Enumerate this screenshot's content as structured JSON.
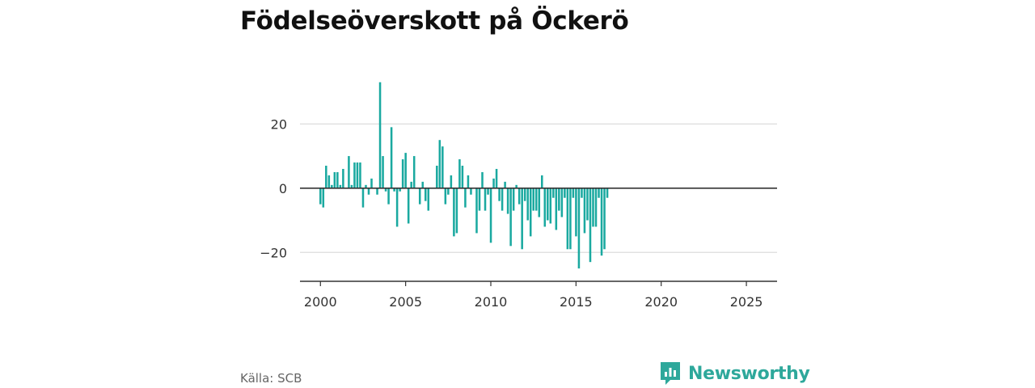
{
  "title": "Födelseöverskott på Öckerö",
  "source": "Källa: SCB",
  "brand": "Newsworthy",
  "colors": {
    "bar": "#1aa9a0",
    "brand": "#2ea89b",
    "grid": "#dddddd",
    "axis": "#333333"
  },
  "chart_data": {
    "type": "bar",
    "title": "Födelseöverskott på Öckerö",
    "xlabel": "",
    "ylabel": "",
    "x_ticks": [
      "2000",
      "2005",
      "2010",
      "2015",
      "2020",
      "2025"
    ],
    "y_ticks": [
      {
        "value": 20,
        "label": "20"
      },
      {
        "value": 0,
        "label": "0"
      },
      {
        "value": -20,
        "label": "−20"
      }
    ],
    "xlim": [
      1998.8,
      2026.8
    ],
    "ylim": [
      -29,
      43
    ],
    "grid": true,
    "x_start": 2000.0,
    "x_step": 0.1667,
    "values": [
      -5,
      -6,
      7,
      4,
      1,
      5,
      5,
      1,
      6,
      0,
      10,
      1,
      8,
      8,
      8,
      -6,
      1,
      -2,
      3,
      0,
      -2,
      33,
      10,
      -1,
      -5,
      19,
      -1,
      -12,
      -1,
      9,
      11,
      -11,
      2,
      10,
      0,
      -5,
      2,
      -4,
      -7,
      0,
      0,
      7,
      15,
      13,
      -5,
      -2,
      4,
      -15,
      -14,
      9,
      7,
      -6,
      4,
      -2,
      0,
      -14,
      -7,
      5,
      -7,
      -2,
      -17,
      3,
      6,
      -4,
      -7,
      2,
      -8,
      -18,
      -7,
      1,
      -5,
      -19,
      -4,
      -10,
      -15,
      -7,
      -7,
      -9,
      4,
      -12,
      -10,
      -11,
      -3,
      -13,
      -7,
      -9,
      -3,
      -19,
      -19,
      -3,
      -15,
      -25,
      -3,
      -14,
      -10,
      -23,
      -12,
      -12,
      -3,
      -21,
      -19,
      -3
    ]
  }
}
